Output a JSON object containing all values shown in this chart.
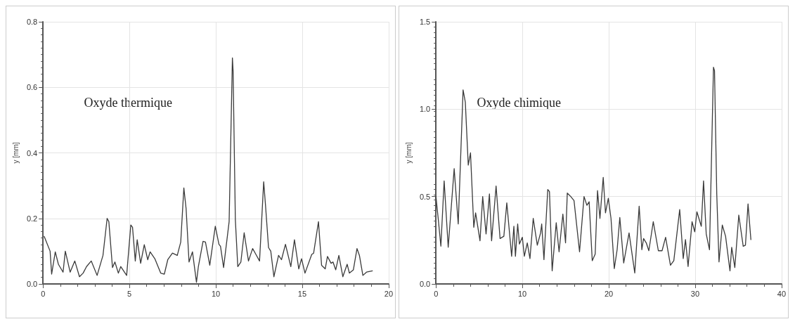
{
  "chart_data": [
    {
      "type": "line",
      "ylabel": "y [mm]",
      "annotations": [
        "Oxyde thermique"
      ],
      "xlim": [
        0,
        20
      ],
      "xticks": [
        0,
        5,
        10,
        15,
        20
      ],
      "ylim": [
        0,
        0.8
      ],
      "yticks": [
        {
          "value": 0,
          "label": "0.0"
        },
        {
          "value": 0.2,
          "label": "0.2"
        },
        {
          "value": 0.4,
          "label": "0.4"
        },
        {
          "value": 0.6,
          "label": "0.6"
        },
        {
          "value": 0.8,
          "label": "0.8"
        }
      ],
      "grid": true,
      "marker": "none",
      "line_style": "solid",
      "series": [
        {
          "color": "#3a3a3a",
          "x": [
            0.07,
            0.41,
            0.5,
            0.71,
            0.89,
            1.16,
            1.29,
            1.57,
            1.84,
            2.11,
            2.32,
            2.52,
            2.79,
            3.13,
            3.47,
            3.71,
            3.81,
            4.02,
            4.16,
            4.36,
            4.5,
            4.84,
            5.08,
            5.18,
            5.34,
            5.45,
            5.65,
            5.86,
            6.06,
            6.2,
            6.47,
            6.81,
            7.02,
            7.22,
            7.49,
            7.77,
            7.97,
            8.15,
            8.28,
            8.45,
            8.65,
            8.88,
            8.99,
            9.26,
            9.4,
            9.65,
            9.97,
            10.18,
            10.27,
            10.45,
            10.77,
            10.96,
            11.0,
            11.13,
            11.27,
            11.45,
            11.64,
            11.89,
            12.13,
            12.32,
            12.53,
            12.77,
            12.87,
            13.05,
            13.18,
            13.36,
            13.63,
            13.8,
            14.03,
            14.34,
            14.55,
            14.8,
            14.96,
            15.16,
            15.55,
            15.66,
            15.94,
            16.12,
            16.33,
            16.46,
            16.67,
            16.78,
            16.94,
            17.12,
            17.35,
            17.6,
            17.73,
            17.96,
            18.17,
            18.31,
            18.51,
            18.72,
            19.06
          ],
          "values": [
            0.145,
            0.1,
            0.03,
            0.098,
            0.06,
            0.036,
            0.1,
            0.036,
            0.07,
            0.022,
            0.033,
            0.053,
            0.07,
            0.026,
            0.087,
            0.2,
            0.19,
            0.05,
            0.067,
            0.033,
            0.053,
            0.026,
            0.18,
            0.173,
            0.07,
            0.135,
            0.063,
            0.12,
            0.074,
            0.098,
            0.077,
            0.033,
            0.03,
            0.074,
            0.094,
            0.087,
            0.128,
            0.293,
            0.23,
            0.067,
            0.098,
            0.005,
            0.053,
            0.13,
            0.128,
            0.057,
            0.176,
            0.121,
            0.115,
            0.05,
            0.19,
            0.69,
            0.65,
            0.196,
            0.053,
            0.067,
            0.156,
            0.07,
            0.108,
            0.09,
            0.07,
            0.312,
            0.244,
            0.111,
            0.1,
            0.022,
            0.087,
            0.074,
            0.121,
            0.053,
            0.135,
            0.046,
            0.077,
            0.033,
            0.09,
            0.094,
            0.19,
            0.057,
            0.046,
            0.084,
            0.063,
            0.067,
            0.043,
            0.087,
            0.022,
            0.06,
            0.033,
            0.043,
            0.108,
            0.087,
            0.026,
            0.036,
            0.04
          ]
        }
      ]
    },
    {
      "type": "line",
      "ylabel": "y [mm]",
      "annotations": [
        "Oxyde chimique"
      ],
      "xlim": [
        0,
        40
      ],
      "xticks": [
        0,
        10,
        20,
        30,
        40
      ],
      "ylim": [
        0,
        1.5
      ],
      "yticks": [
        {
          "value": 0,
          "label": "0.0"
        },
        {
          "value": 0.5,
          "label": "0.5"
        },
        {
          "value": 1,
          "label": "1.0"
        },
        {
          "value": 1.5,
          "label": "1.5"
        }
      ],
      "grid": true,
      "marker": "none",
      "line_style": "solid",
      "series": [
        {
          "color": "#3a3a3a",
          "x": [
            0,
            0.26,
            0.57,
            0.95,
            1.42,
            2.11,
            2.58,
            3.14,
            3.4,
            3.74,
            4.0,
            4.38,
            4.59,
            5.1,
            5.41,
            5.8,
            6.19,
            6.44,
            6.96,
            7.42,
            7.86,
            8.2,
            8.76,
            9.02,
            9.2,
            9.46,
            9.66,
            10.0,
            10.23,
            10.57,
            10.88,
            11.26,
            11.73,
            12.11,
            12.24,
            12.5,
            12.94,
            13.14,
            13.45,
            13.92,
            14.25,
            14.69,
            15.0,
            15.2,
            15.6,
            15.98,
            16.62,
            17.14,
            17.47,
            17.73,
            18.09,
            18.43,
            18.7,
            18.98,
            19.36,
            19.62,
            19.95,
            20.26,
            20.64,
            20.97,
            21.28,
            21.73,
            22.35,
            23.01,
            23.52,
            23.83,
            24.03,
            24.34,
            24.64,
            25.15,
            25.74,
            26.17,
            26.58,
            27.14,
            27.53,
            28.21,
            28.62,
            28.88,
            29.18,
            29.64,
            29.95,
            30.2,
            30.71,
            30.97,
            31.28,
            31.66,
            32.12,
            32.24,
            32.5,
            32.76,
            33.14,
            33.52,
            34.03,
            34.23,
            34.59,
            35.05,
            35.56,
            35.82,
            36.12,
            36.45
          ],
          "values": [
            0.5,
            0.375,
            0.216,
            0.59,
            0.21,
            0.66,
            0.343,
            1.11,
            1.04,
            0.68,
            0.75,
            0.324,
            0.407,
            0.247,
            0.5,
            0.286,
            0.515,
            0.247,
            0.56,
            0.26,
            0.273,
            0.464,
            0.158,
            0.33,
            0.158,
            0.343,
            0.228,
            0.267,
            0.158,
            0.235,
            0.145,
            0.375,
            0.222,
            0.292,
            0.343,
            0.139,
            0.54,
            0.528,
            0.075,
            0.35,
            0.184,
            0.4,
            0.235,
            0.52,
            0.5,
            0.477,
            0.184,
            0.5,
            0.45,
            0.47,
            0.133,
            0.171,
            0.534,
            0.375,
            0.61,
            0.407,
            0.49,
            0.375,
            0.088,
            0.196,
            0.38,
            0.12,
            0.292,
            0.063,
            0.445,
            0.196,
            0.26,
            0.235,
            0.19,
            0.356,
            0.19,
            0.19,
            0.267,
            0.107,
            0.133,
            0.426,
            0.145,
            0.254,
            0.1,
            0.356,
            0.298,
            0.413,
            0.33,
            0.59,
            0.286,
            0.196,
            1.24,
            1.22,
            0.515,
            0.126,
            0.337,
            0.273,
            0.075,
            0.21,
            0.094,
            0.394,
            0.216,
            0.222,
            0.458,
            0.254
          ]
        }
      ]
    }
  ]
}
